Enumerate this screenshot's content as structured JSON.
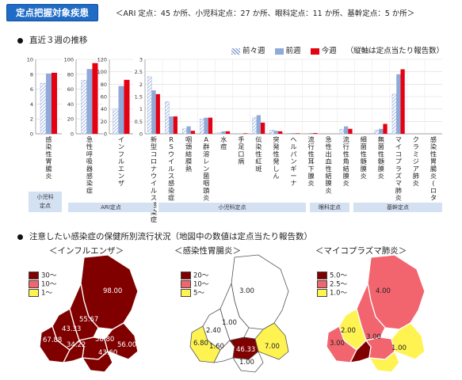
{
  "header": {
    "title": "定点把握対象疾患",
    "counts": "＜ARI 定点：45 か所、小児科定点：27 か所、眼科定点：11 か所、基幹定点：5 か所＞"
  },
  "section1": {
    "title": "直近３週の推移"
  },
  "section2": {
    "title": "注意したい感染症の保健所別流行状況（地図中の数値は定点当たり報告数）"
  },
  "legend": {
    "w1": "前々週",
    "w2": "前週",
    "w3": "今週",
    "note": "（縦軸は定点当たり報告数）"
  },
  "colors": {
    "w1": "#a9c0e3",
    "w2": "#8fa9d8",
    "w3": "#e50012",
    "high": "#800000",
    "mid": "#f2646e",
    "low": "#fff352"
  },
  "groups": [
    {
      "label": "小児科\n定点"
    },
    {
      "label": "ARI定点"
    },
    {
      "label": "小児科定点"
    },
    {
      "label": "眼科定点"
    },
    {
      "label": "基幹定点"
    }
  ],
  "chart_data": [
    {
      "type": "bar",
      "ylim": [
        0,
        10
      ],
      "ticks": [
        "0",
        "2",
        "4",
        "6",
        "8",
        "10"
      ],
      "categories": [
        "感染性胃腸炎"
      ],
      "series": [
        {
          "name": "前々週",
          "values": [
            6.8
          ]
        },
        {
          "name": "前週",
          "values": [
            8.1
          ]
        },
        {
          "name": "今週",
          "values": [
            8.2
          ]
        }
      ]
    },
    {
      "type": "bar",
      "ylim": [
        0,
        100
      ],
      "ticks": [
        "0",
        "20",
        "40",
        "60",
        "80",
        "100"
      ],
      "categories": [
        "急性呼吸器感染症"
      ],
      "series": [
        {
          "name": "前々週",
          "values": [
            72
          ]
        },
        {
          "name": "前週",
          "values": [
            87
          ]
        },
        {
          "name": "今週",
          "values": [
            95
          ]
        }
      ]
    },
    {
      "type": "bar",
      "ylim": [
        0,
        120
      ],
      "ticks": [
        "0",
        "20",
        "40",
        "60",
        "80",
        "100",
        "120"
      ],
      "categories": [
        "インフルエンザ"
      ],
      "series": [
        {
          "name": "前々週",
          "values": [
            40
          ]
        },
        {
          "name": "前週",
          "values": [
            77
          ]
        },
        {
          "name": "今週",
          "values": [
            87
          ]
        }
      ]
    },
    {
      "type": "bar",
      "ylim": [
        0,
        3
      ],
      "ticks": [
        "0",
        "0.5",
        "1",
        "1.5",
        "2",
        "2.5",
        "3"
      ],
      "categories": [
        "新型コロナウイルス感染症",
        "RSウイルス感染症",
        "咽頭結膜熱",
        "A群溶レン菌咽頭炎",
        "水痘",
        "手足口病",
        "伝染性紅斑",
        "突発性発しん",
        "ヘルパンギーナ",
        "流行性耳下腺炎",
        "急性出血性結膜炎",
        "流行性角結膜炎",
        "細菌性髄膜炎",
        "無菌性髄膜炎",
        "マイコプラズマ肺炎",
        "クラミジア肺炎",
        "感染性胃腸炎(ロタ)"
      ],
      "series": [
        {
          "name": "前々週",
          "values": [
            2.3,
            1.3,
            0.2,
            0.6,
            0.05,
            0.0,
            0.65,
            0.15,
            0.02,
            0.0,
            0.0,
            0.18,
            0.0,
            0.15,
            1.6,
            0.0,
            0.0
          ]
        },
        {
          "name": "前週",
          "values": [
            1.75,
            0.7,
            0.3,
            0.65,
            0.1,
            0.0,
            0.75,
            0.12,
            0.03,
            0.03,
            0.0,
            0.3,
            0.0,
            0.2,
            2.4,
            0.0,
            0.0
          ]
        },
        {
          "name": "今週",
          "values": [
            1.6,
            0.7,
            0.12,
            0.65,
            0.1,
            0.02,
            0.45,
            0.1,
            0.02,
            0.03,
            0.0,
            0.2,
            0.0,
            0.4,
            2.6,
            0.0,
            0.0
          ]
        }
      ]
    }
  ],
  "maps": [
    {
      "title": "＜インフルエンザ＞",
      "legend": [
        "30～",
        "10～",
        "1～"
      ],
      "values": [
        "98.00",
        "55.67",
        "43.33",
        "67.88",
        "34.22",
        "58.80",
        "56.00",
        "43.60"
      ]
    },
    {
      "title": "＜感染性胃腸炎＞",
      "legend": [
        "20～",
        "10～",
        "5～"
      ],
      "values": [
        "3.00",
        "2.40",
        "1.00",
        "6.80",
        "1.60",
        "46.33",
        "7.00",
        "1.00"
      ]
    },
    {
      "title": "＜マイコプラズマ肺炎＞",
      "legend": [
        "5.0～",
        "2.5～",
        "1.0～"
      ],
      "values": [
        "4.00",
        "2.00",
        "3.00",
        "3.00",
        "1.00"
      ]
    }
  ]
}
